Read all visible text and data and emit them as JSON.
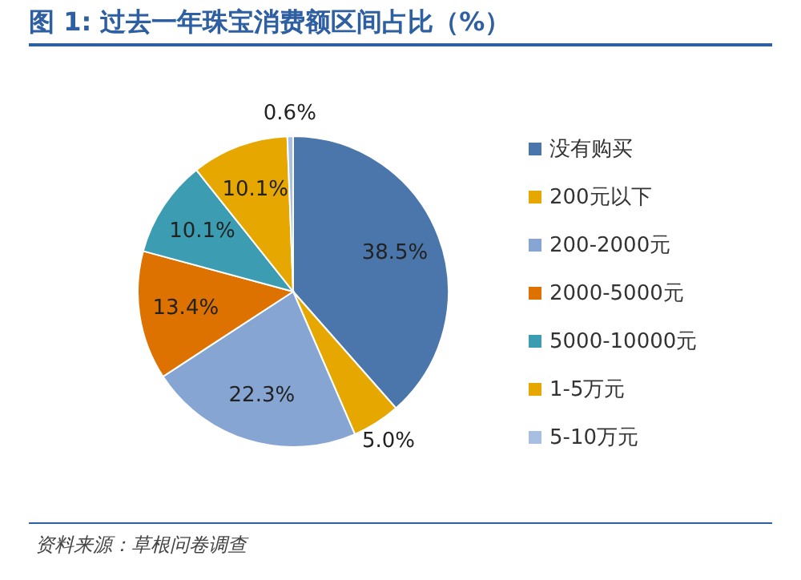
{
  "chart_data": {
    "type": "pie",
    "title": "图 1:  过去一年珠宝消费额区间占比（%）",
    "categories": [
      "没有购买",
      "200元以下",
      "200-2000元",
      "2000-5000元",
      "5000-10000元",
      "1-5万元",
      "5-10万元"
    ],
    "values": [
      38.5,
      5.0,
      22.3,
      13.4,
      10.1,
      10.1,
      0.6
    ],
    "value_labels": [
      "38.5%",
      "5.0%",
      "22.3%",
      "13.4%",
      "10.1%",
      "10.1%",
      "0.6%"
    ],
    "colors": [
      "#4a76ab",
      "#e6a800",
      "#86a5d3",
      "#dd7200",
      "#3c9db2",
      "#e6a800",
      "#a9bfe2"
    ],
    "legend": "right",
    "annotations": [
      "资料来源：草根问卷调查"
    ]
  }
}
